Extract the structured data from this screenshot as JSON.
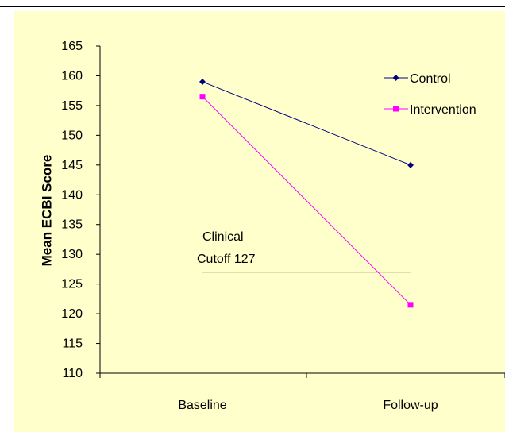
{
  "colors": {
    "plot_background": "#FFFFCC",
    "frame_line": "#000000",
    "control": "#000080",
    "intervention": "#FF00FF",
    "cutoff_line": "#000000"
  },
  "chart_data": {
    "type": "line",
    "title": "",
    "xlabel": "",
    "ylabel": "Mean ECBI Score",
    "categories": [
      "Baseline",
      "Follow-up"
    ],
    "ylim": [
      110,
      165
    ],
    "yticks": [
      "110",
      "115",
      "120",
      "125",
      "130",
      "135",
      "140",
      "145",
      "150",
      "155",
      "160",
      "165"
    ],
    "grid": false,
    "legend_position": "top-right",
    "series": [
      {
        "name": "Control",
        "values": [
          159,
          145
        ],
        "color": "#000080",
        "marker": "diamond-icon"
      },
      {
        "name": "Intervention",
        "values": [
          156.5,
          121.5
        ],
        "color": "#FF00FF",
        "marker": "square-icon"
      }
    ],
    "annotations": [
      {
        "line1": "Clinical",
        "line2": "Cutoff 127",
        "y": 127,
        "x_from": "Baseline",
        "x_to": "Follow-up"
      }
    ]
  }
}
